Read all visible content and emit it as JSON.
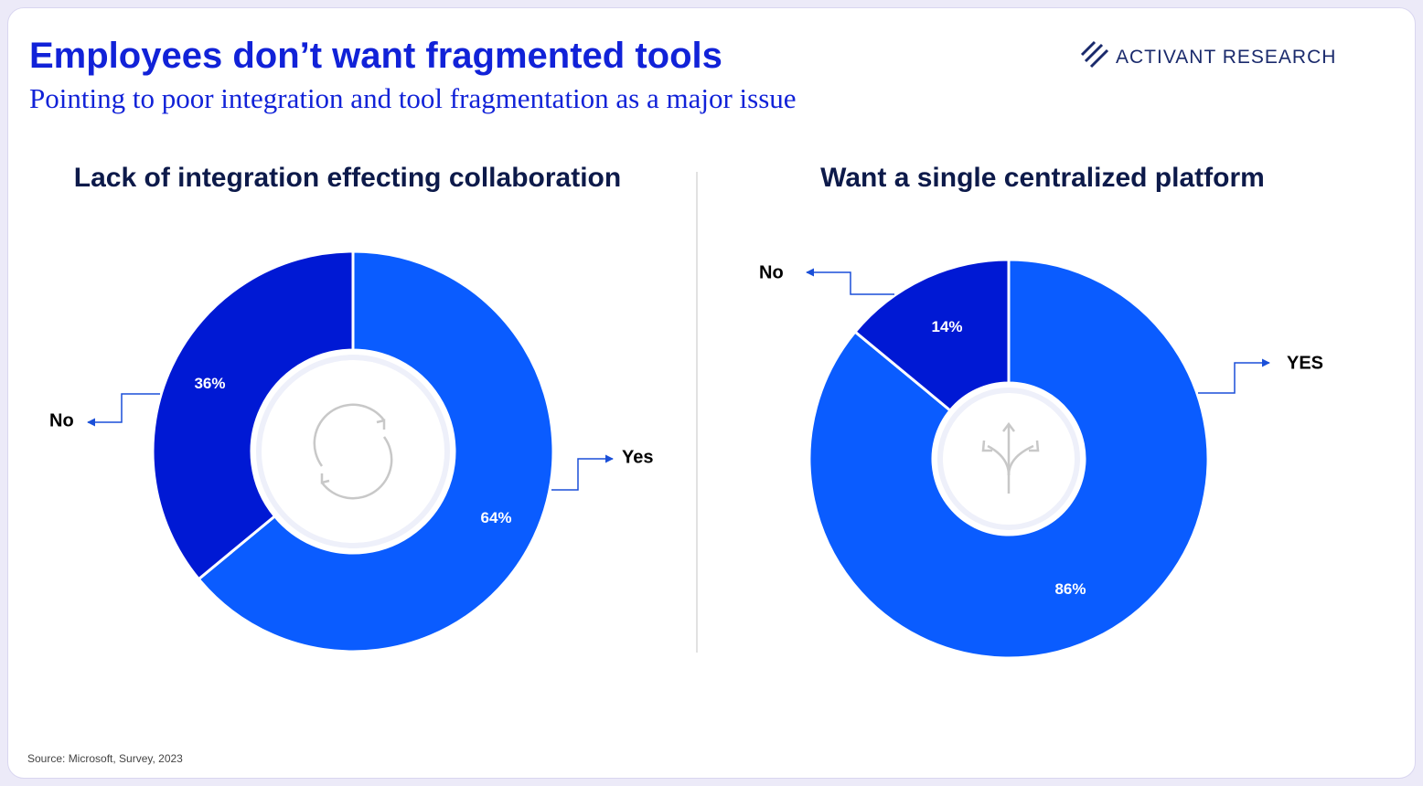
{
  "header": {
    "title": "Employees don’t want fragmented tools",
    "subtitle": "Pointing to poor integration and tool fragmentation as a major issue",
    "brand": "ACTIVANT RESEARCH"
  },
  "chart_data": [
    {
      "type": "donut",
      "title": "Lack of integration effecting collaboration",
      "categories": [
        "Yes",
        "No"
      ],
      "values": [
        64,
        36
      ],
      "value_labels": [
        "64%",
        "36%"
      ],
      "colors": [
        "#0a5cff",
        "#0019d4"
      ]
    },
    {
      "type": "donut",
      "title": "Want a single centralized platform",
      "categories": [
        "YES",
        "No"
      ],
      "values": [
        86,
        14
      ],
      "value_labels": [
        "86%",
        "14%"
      ],
      "colors": [
        "#0a5cff",
        "#0019d4"
      ]
    }
  ],
  "source": "Source:  Microsoft, Survey, 2023"
}
